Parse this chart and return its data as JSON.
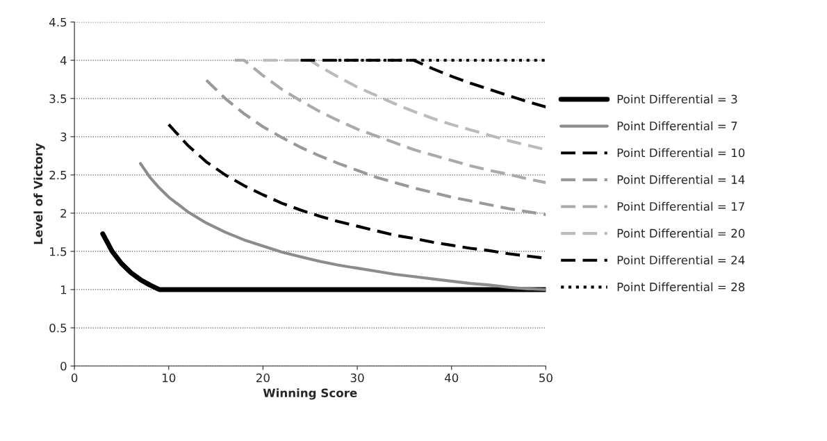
{
  "chart_data": {
    "type": "line",
    "xlabel": "Winning Score",
    "ylabel": "Level of Victory",
    "xlim": [
      0,
      50
    ],
    "xticks": [
      0,
      10,
      20,
      30,
      40,
      50
    ],
    "ylim": [
      0,
      4.5
    ],
    "yticks": [
      0,
      0.5,
      1,
      1.5,
      2,
      2.5,
      3,
      3.5,
      4,
      4.5
    ],
    "grid": "y",
    "legend": "right",
    "marker": "none",
    "series": [
      {
        "name": "Point Differential = 3",
        "color": "#000000",
        "line_style": "solid",
        "x": [
          3,
          4,
          5,
          6,
          7,
          8,
          9,
          50
        ],
        "values": [
          1.73,
          1.5,
          1.34,
          1.22,
          1.13,
          1.06,
          1,
          1
        ]
      },
      {
        "name": "Point Differential = 7",
        "color": "#8c8c8c",
        "line_style": "solid",
        "x": [
          7,
          8,
          9,
          10,
          12,
          14,
          16,
          18,
          20,
          22,
          24,
          26,
          28,
          30,
          32,
          34,
          36,
          38,
          40,
          42,
          44,
          46,
          48,
          50
        ],
        "values": [
          2.65,
          2.47,
          2.33,
          2.21,
          2.02,
          1.87,
          1.75,
          1.65,
          1.57,
          1.49,
          1.43,
          1.37,
          1.32,
          1.28,
          1.24,
          1.2,
          1.17,
          1.14,
          1.11,
          1.08,
          1.06,
          1.03,
          1.01,
          1
        ]
      },
      {
        "name": "Point Differential = 10",
        "color": "#000000",
        "line_style": "dashed",
        "x": [
          10,
          12,
          14,
          16,
          18,
          20,
          22,
          24,
          26,
          28,
          30,
          32,
          34,
          36,
          38,
          40,
          42,
          44,
          46,
          48,
          50
        ],
        "values": [
          3.16,
          2.89,
          2.67,
          2.5,
          2.36,
          2.24,
          2.13,
          2.04,
          1.96,
          1.89,
          1.83,
          1.77,
          1.71,
          1.67,
          1.62,
          1.58,
          1.54,
          1.51,
          1.47,
          1.44,
          1.41
        ]
      },
      {
        "name": "Point Differential = 14",
        "color": "#999999",
        "line_style": "dashed",
        "x": [
          14,
          16,
          18,
          20,
          22,
          24,
          26,
          28,
          30,
          32,
          34,
          36,
          38,
          40,
          42,
          44,
          46,
          48,
          50
        ],
        "values": [
          3.74,
          3.5,
          3.3,
          3.13,
          2.99,
          2.86,
          2.75,
          2.65,
          2.56,
          2.47,
          2.4,
          2.33,
          2.27,
          2.21,
          2.16,
          2.11,
          2.06,
          2.02,
          1.98
        ]
      },
      {
        "name": "Point Differential = 17",
        "color": "#aaaaaa",
        "line_style": "dashed",
        "x": [
          17,
          18,
          20,
          22,
          24,
          26,
          28,
          30,
          32,
          34,
          36,
          38,
          40,
          42,
          44,
          46,
          48,
          50
        ],
        "values": [
          4,
          4,
          3.8,
          3.62,
          3.47,
          3.33,
          3.21,
          3.1,
          3.01,
          2.92,
          2.83,
          2.76,
          2.69,
          2.62,
          2.56,
          2.51,
          2.45,
          2.4
        ]
      },
      {
        "name": "Point Differential = 20",
        "color": "#bbbbbb",
        "line_style": "dashed",
        "x": [
          20,
          25,
          26,
          28,
          30,
          32,
          34,
          36,
          38,
          40,
          42,
          44,
          46,
          48,
          50
        ],
        "values": [
          4,
          4,
          3.92,
          3.78,
          3.65,
          3.54,
          3.43,
          3.33,
          3.24,
          3.16,
          3.09,
          3.02,
          2.95,
          2.89,
          2.83
        ]
      },
      {
        "name": "Point Differential = 24",
        "color": "#000000",
        "line_style": "dashed",
        "x": [
          24,
          36,
          38,
          40,
          42,
          44,
          46,
          48,
          50
        ],
        "values": [
          4,
          4,
          3.89,
          3.79,
          3.7,
          3.62,
          3.54,
          3.46,
          3.39
        ]
      },
      {
        "name": "Point Differential = 28",
        "color": "#000000",
        "line_style": "dotted",
        "x": [
          28,
          50
        ],
        "values": [
          4,
          4
        ]
      }
    ]
  }
}
